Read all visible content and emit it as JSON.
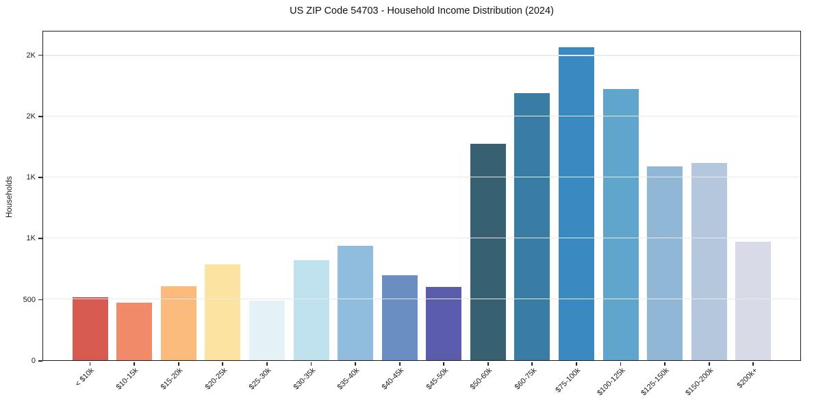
{
  "chart_data": {
    "type": "bar",
    "title": "US ZIP Code 54703 - Household Income Distribution (2024)",
    "xlabel": "",
    "ylabel": "Households",
    "ylim": [
      0,
      2700
    ],
    "grid": true,
    "legend": "none",
    "categories": [
      "< $10k",
      "$10-15k",
      "$15-20k",
      "$20-25k",
      "$25-30k",
      "$30-35k",
      "$35-40k",
      "$40-45k",
      "$45-50k",
      "$50-60k",
      "$60-75k",
      "$75-100k",
      "$100-125k",
      "$125-150k",
      "$150-200k",
      "$200k+"
    ],
    "values": [
      520,
      475,
      605,
      785,
      490,
      820,
      940,
      695,
      600,
      1780,
      2195,
      2570,
      2230,
      1590,
      1620,
      975
    ],
    "bar_colors": [
      "#d85b52",
      "#f18a69",
      "#fbbb7c",
      "#fce3a2",
      "#e4f1f5",
      "#c0e1ee",
      "#90bdde",
      "#6a8ec2",
      "#5b5dac",
      "#376072",
      "#3a7da4",
      "#3a8ac1",
      "#60a6cc",
      "#90b7d5",
      "#b5c7dc",
      "#d8dae7"
    ],
    "y_ticks": [
      {
        "value": 0,
        "label": "0"
      },
      {
        "value": 500,
        "label": "500"
      },
      {
        "value": 1000,
        "label": "1K"
      },
      {
        "value": 1500,
        "label": "1K"
      },
      {
        "value": 2000,
        "label": "2K"
      },
      {
        "value": 2500,
        "label": "2K"
      }
    ]
  },
  "style_colors": {
    "grid": "#e9e9e9",
    "spine": "#1a1a1a",
    "background": "#ffffff"
  }
}
